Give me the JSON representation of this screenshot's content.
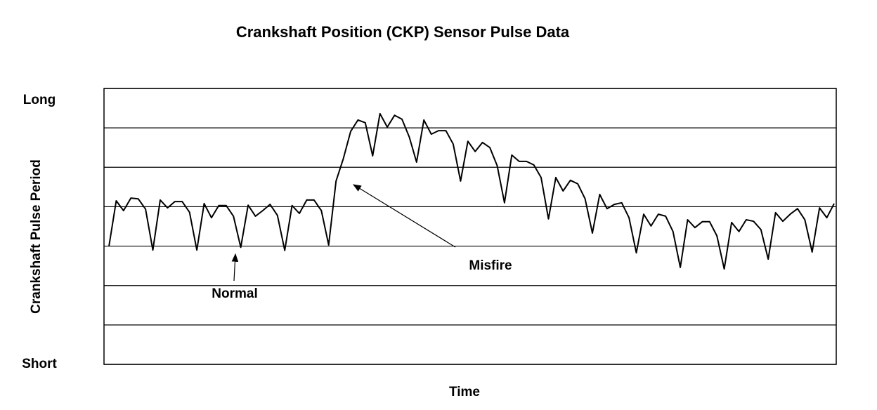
{
  "chart_data": {
    "type": "line",
    "title": "Crankshaft Position (CKP) Sensor Pulse Data",
    "x_label": "Time",
    "y_label": "Crankshaft Pulse Period",
    "color": "#000000",
    "ylim": [
      0,
      7
    ],
    "yticks": [
      {
        "value": 0,
        "label": "Short"
      },
      {
        "value": 7,
        "label": "Long"
      }
    ],
    "ygrid": [
      1,
      2,
      3,
      4,
      5,
      6
    ],
    "grid": true,
    "annotations": [
      "Normal",
      "Misfire"
    ],
    "values": [
      2.99,
      4.15,
      3.9,
      4.22,
      4.2,
      3.94,
      2.9,
      4.17,
      3.97,
      4.13,
      4.13,
      3.86,
      2.9,
      4.08,
      3.72,
      4.03,
      4.03,
      3.76,
      2.97,
      4.04,
      3.76,
      3.9,
      4.06,
      3.78,
      2.89,
      4.03,
      3.83,
      4.17,
      4.17,
      3.9,
      3.03,
      4.65,
      5.22,
      5.91,
      6.2,
      6.13,
      5.29,
      6.36,
      6.02,
      6.32,
      6.22,
      5.77,
      5.13,
      6.2,
      5.84,
      5.93,
      5.93,
      5.59,
      4.65,
      5.66,
      5.4,
      5.63,
      5.5,
      5.04,
      4.1,
      5.31,
      5.15,
      5.15,
      5.06,
      4.74,
      3.69,
      4.74,
      4.4,
      4.67,
      4.58,
      4.2,
      3.33,
      4.31,
      3.95,
      4.06,
      4.1,
      3.72,
      2.83,
      3.81,
      3.51,
      3.81,
      3.76,
      3.37,
      2.46,
      3.67,
      3.47,
      3.62,
      3.62,
      3.26,
      2.42,
      3.6,
      3.37,
      3.67,
      3.63,
      3.42,
      2.67,
      3.85,
      3.63,
      3.81,
      3.95,
      3.67,
      2.85,
      3.97,
      3.72,
      4.08
    ]
  }
}
